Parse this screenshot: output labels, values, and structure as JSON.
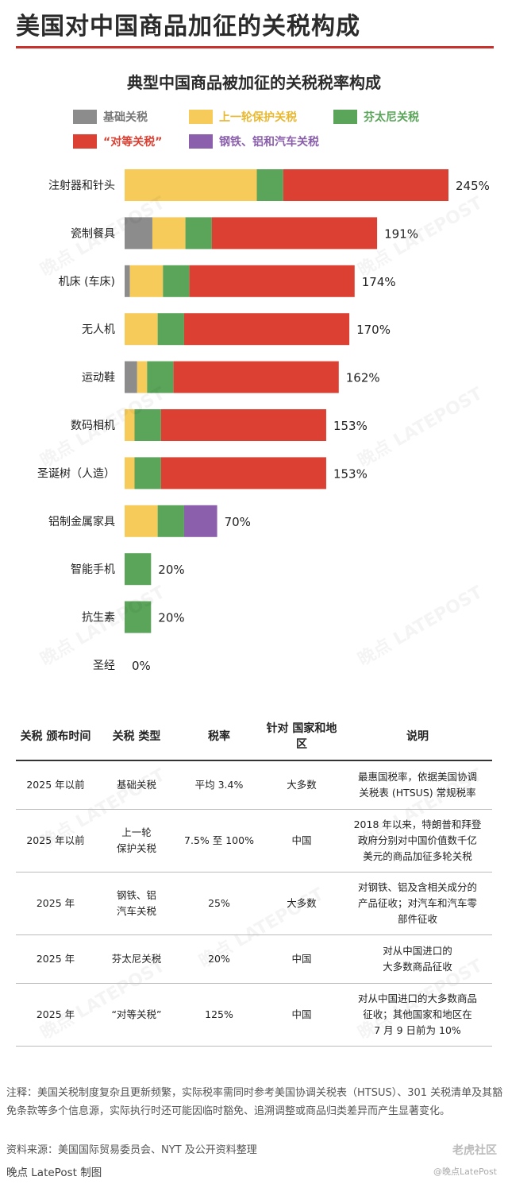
{
  "header": {
    "title": "美国对中国商品加征的关税构成"
  },
  "colors": {
    "base": "#8c8c8c",
    "previous": "#f6cb5a",
    "fentanyl": "#5aa55a",
    "reciprocal": "#dc4032",
    "steel": "#8b5fab"
  },
  "chart_data": {
    "type": "bar",
    "orientation": "horizontal",
    "stacked": true,
    "title": "典型中国商品被加征的关税税率构成",
    "legend_position": "top",
    "grid": false,
    "xlim": [
      0,
      245
    ],
    "series": [
      {
        "name": "基础关税",
        "key": "base"
      },
      {
        "name": "上一轮保护关税",
        "key": "previous"
      },
      {
        "name": "芬太尼关税",
        "key": "fentanyl"
      },
      {
        "name": "“对等关税”",
        "key": "reciprocal"
      },
      {
        "name": "钢铁、铝和汽车关税",
        "key": "steel"
      }
    ],
    "items": [
      {
        "label": "注射器和针头",
        "total": "245%",
        "segments": {
          "base": 0,
          "previous": 100,
          "fentanyl": 20,
          "reciprocal": 125,
          "steel": 0
        }
      },
      {
        "label": "瓷制餐具",
        "total": "191%",
        "segments": {
          "base": 21,
          "previous": 25,
          "fentanyl": 20,
          "reciprocal": 125,
          "steel": 0
        }
      },
      {
        "label": "机床 (车床)",
        "total": "174%",
        "segments": {
          "base": 4,
          "previous": 25,
          "fentanyl": 20,
          "reciprocal": 125,
          "steel": 0
        }
      },
      {
        "label": "无人机",
        "total": "170%",
        "segments": {
          "base": 0,
          "previous": 25,
          "fentanyl": 20,
          "reciprocal": 125,
          "steel": 0
        }
      },
      {
        "label": "运动鞋",
        "total": "162%",
        "segments": {
          "base": 9.5,
          "previous": 7.5,
          "fentanyl": 20,
          "reciprocal": 125,
          "steel": 0
        }
      },
      {
        "label": "数码相机",
        "total": "153%",
        "segments": {
          "base": 0,
          "previous": 7.5,
          "fentanyl": 20,
          "reciprocal": 125,
          "steel": 0
        }
      },
      {
        "label": "圣诞树（人造）",
        "total": "153%",
        "segments": {
          "base": 0,
          "previous": 7.5,
          "fentanyl": 20,
          "reciprocal": 125,
          "steel": 0
        }
      },
      {
        "label": "铝制金属家具",
        "total": "70%",
        "segments": {
          "base": 0,
          "previous": 25,
          "fentanyl": 20,
          "reciprocal": 0,
          "steel": 25
        }
      },
      {
        "label": "智能手机",
        "total": "20%",
        "segments": {
          "base": 0,
          "previous": 0,
          "fentanyl": 20,
          "reciprocal": 0,
          "steel": 0
        }
      },
      {
        "label": "抗生素",
        "total": "20%",
        "segments": {
          "base": 0,
          "previous": 0,
          "fentanyl": 20,
          "reciprocal": 0,
          "steel": 0
        }
      },
      {
        "label": "圣经",
        "total": "0%",
        "segments": {
          "base": 0,
          "previous": 0,
          "fentanyl": 0,
          "reciprocal": 0,
          "steel": 0
        }
      }
    ]
  },
  "table": {
    "headers": [
      "关税\n颁布时间",
      "关税\n类型",
      "税率",
      "针对\n国家和地区",
      "说明"
    ],
    "rows": [
      [
        "2025 年以前",
        "基础关税",
        "平均 3.4%",
        "大多数",
        "最惠国税率，依据美国协调\n关税表 (HTSUS) 常规税率"
      ],
      [
        "2025 年以前",
        "上一轮\n保护关税",
        "7.5% 至 100%",
        "中国",
        "2018 年以来，特朗普和拜登\n政府分别对中国价值数千亿\n美元的商品加征多轮关税"
      ],
      [
        "2025 年",
        "钢铁、铝\n汽车关税",
        "25%",
        "大多数",
        "对钢铁、铝及含相关成分的\n产品征收；对汽车和汽车零\n部件征收"
      ],
      [
        "2025 年",
        "芬太尼关税",
        "20%",
        "中国",
        "对从中国进口的\n大多数商品征收"
      ],
      [
        "2025 年",
        "“对等关税”",
        "125%",
        "中国",
        "对从中国进口的大多数商品\n征收；其他国家和地区在\n7 月 9 日前为 10%"
      ]
    ]
  },
  "footer": {
    "note": "注释：美国关税制度复杂且更新频繁，实际税率需同时参考美国协调关税表（HTSUS）、301 关税清单及其豁免条款等多个信息源，实际执行时还可能因临时豁免、追溯调整或商品归类差异而产生显著变化。",
    "source": "资料来源：美国国际贸易委员会、NYT 及公开资料整理",
    "credit": "晚点 LatePost 制图",
    "brand": "老虎社区",
    "handle": "@晚点LatePost"
  },
  "watermark_text": "晚点 LATEPOST"
}
